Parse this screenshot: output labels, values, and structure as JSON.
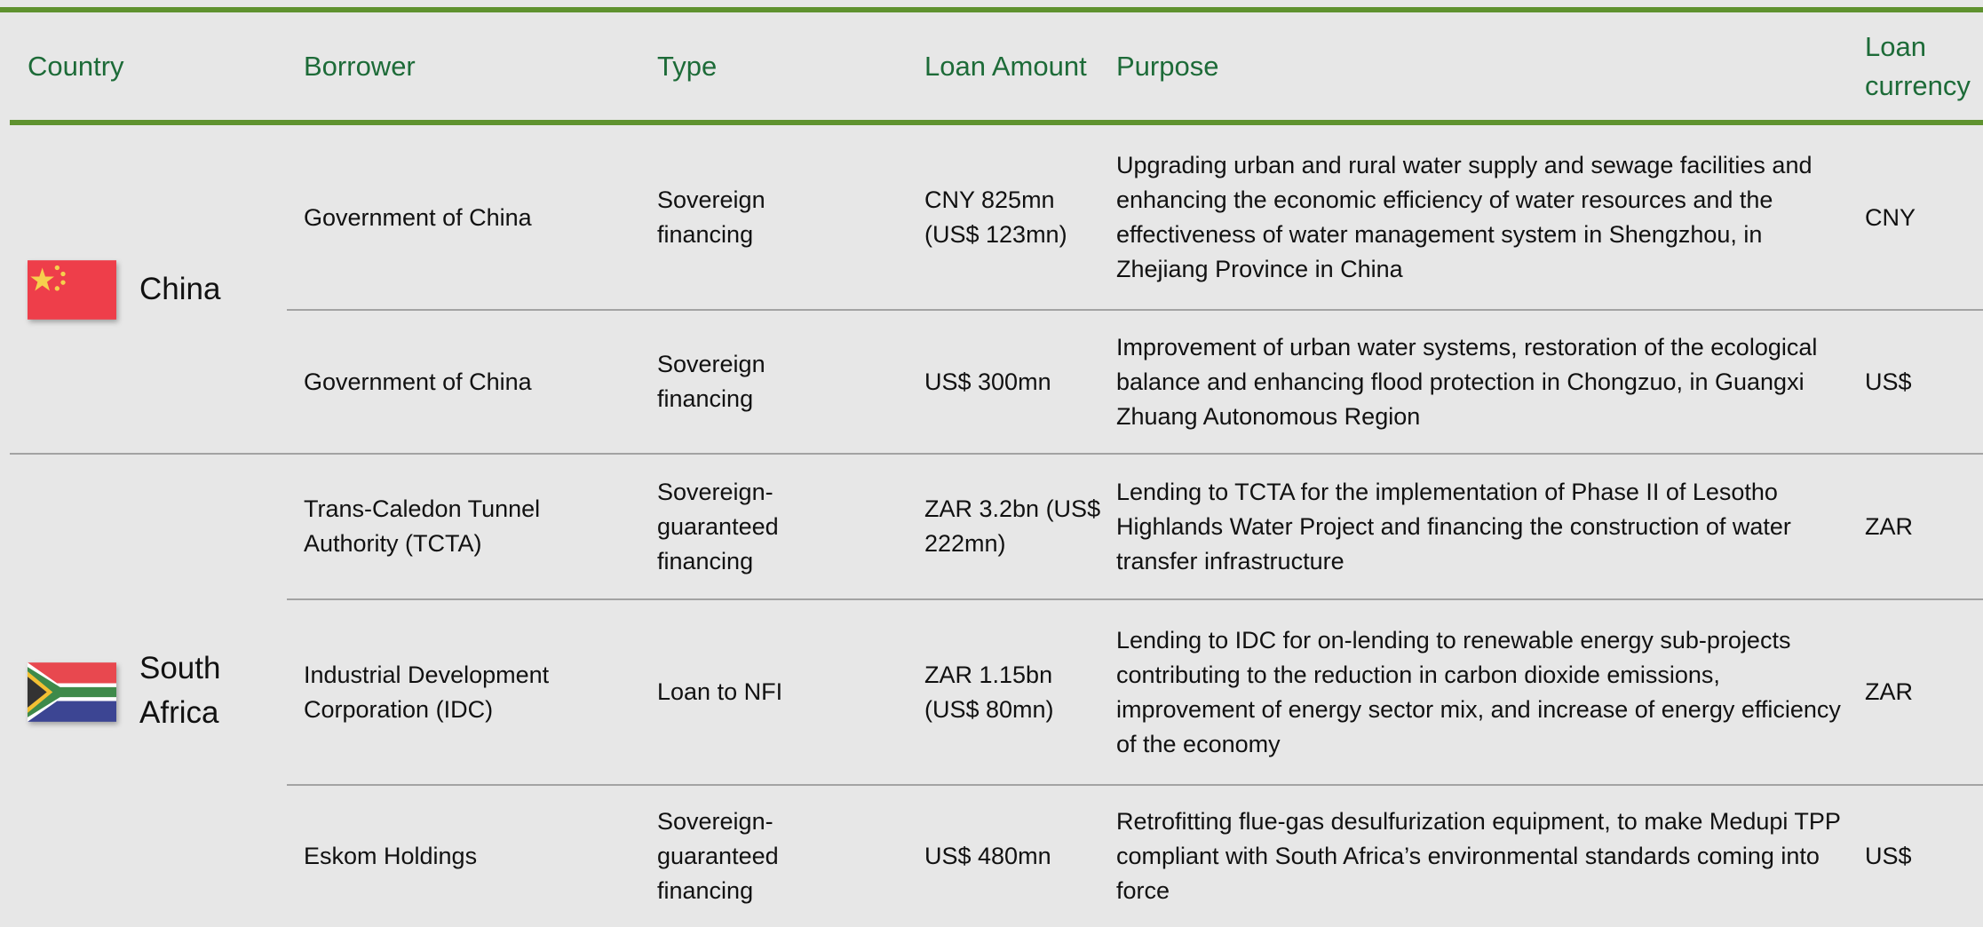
{
  "header": [
    "Country",
    "Borrower",
    "Type",
    "Loan Amount",
    "Purpose",
    "Loan currency"
  ],
  "groups": [
    {
      "country": "China",
      "rows": [
        {
          "borrower": "Government of China",
          "type": "Sovereign financing",
          "amount": "CNY 825mn (US$ 123mn)",
          "purpose": "Upgrading urban and rural water supply and sewage facilities and enhancing the economic efficiency of water resources and the effectiveness of water management system in Shengzhou, in Zhejiang Province in China",
          "currency": "CNY"
        },
        {
          "borrower": "Government of China",
          "type": "Sovereign financing",
          "amount": "US$ 300mn",
          "purpose": "Improvement of urban water systems, restoration of the ecological balance and enhancing flood protection in Chongzuo, in Guangxi Zhuang Autonomous Region",
          "currency": "US$"
        }
      ]
    },
    {
      "country": "South Africa",
      "rows": [
        {
          "borrower": "Trans-Caledon Tunnel Authority (TCTA)",
          "type": "Sovereign-guaranteed financing",
          "amount": "ZAR 3.2bn (US$ 222mn)",
          "purpose": "Lending to TCTA for the implementation of Phase II of Lesotho Highlands Water Project and financing the construction of water transfer infrastructure",
          "currency": "ZAR"
        },
        {
          "borrower": "Industrial Development Corporation (IDC)",
          "type": "Loan to NFI",
          "amount": "ZAR 1.15bn (US$ 80mn)",
          "purpose": "Lending to IDC for on-lending to renewable energy sub-projects contributing to the reduction in carbon dioxide emissions, improvement of energy sector mix, and increase of energy efficiency of the economy",
          "currency": "ZAR"
        },
        {
          "borrower": "Eskom Holdings",
          "type": "Sovereign-guaranteed financing",
          "amount": "US$ 480mn",
          "purpose": "Retrofitting flue-gas desulfurization equipment, to make Medupi TPP compliant with South Africa’s environmental standards coming into force",
          "currency": "US$"
        }
      ]
    }
  ]
}
